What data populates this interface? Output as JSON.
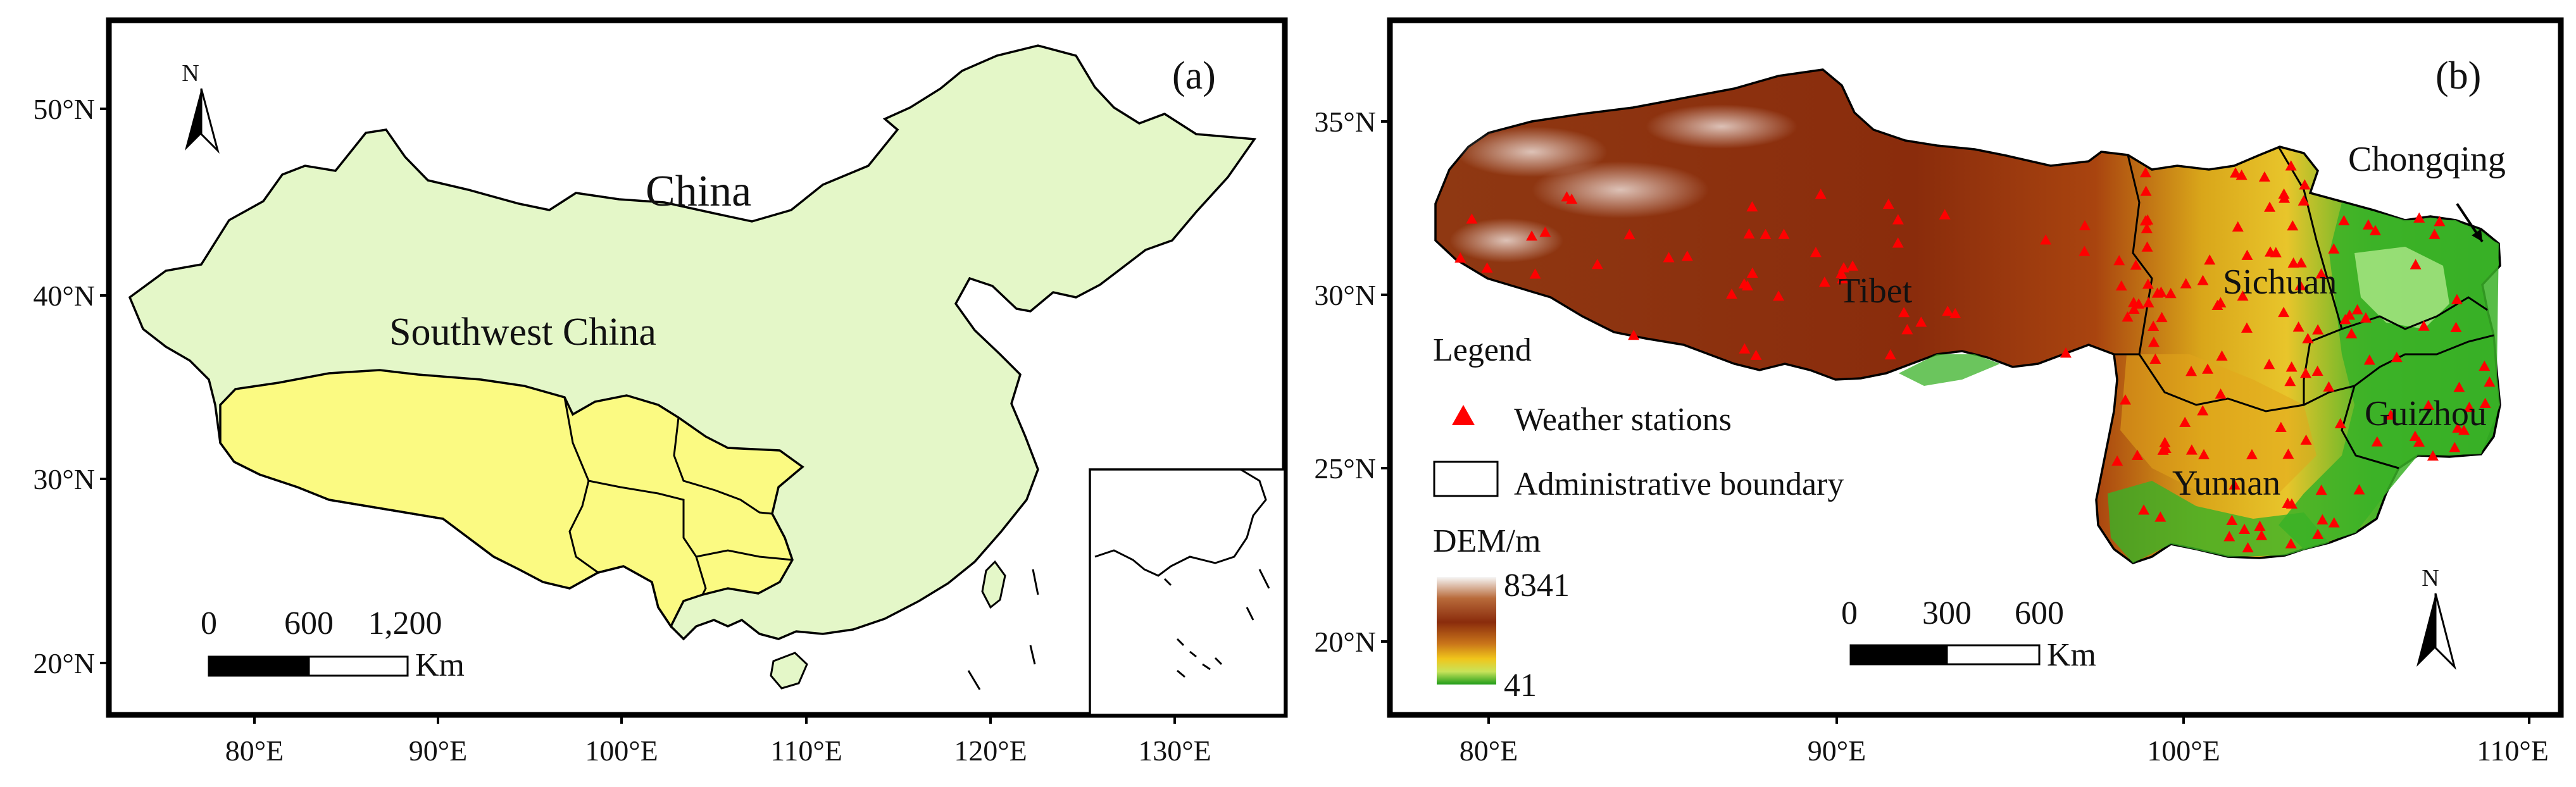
{
  "colors": {
    "china_fill": "#e4f7c8",
    "southwest_fill": "#fbfa82",
    "station": "#ff0000",
    "frame": "#000000",
    "dem_high": "#f4f4f4",
    "dem_mid_brown": "#8a2c0c",
    "dem_yellow": "#f0c51b",
    "dem_low": "#21a11a"
  },
  "panel_a": {
    "tag": "(a)",
    "north_label": "N",
    "country_label": "China",
    "region_label": "Southwest China",
    "scalebar": {
      "ticks": [
        "0",
        "600",
        "1,200"
      ],
      "unit": "Km"
    },
    "x_ticks": [
      "80°E",
      "90°E",
      "100°E",
      "110°E",
      "120°E",
      "130°E"
    ],
    "y_ticks": [
      "50°N",
      "40°N",
      "30°N",
      "20°N"
    ]
  },
  "panel_b": {
    "tag": "(b)",
    "north_label": "N",
    "provinces": [
      "Tibet",
      "Sichuan",
      "Chongqing",
      "Guizhou",
      "Yunnan"
    ],
    "legend": {
      "title": "Legend",
      "stations_label": "Weather stations",
      "boundary_label": "Administrative boundary",
      "dem_title": "DEM/m",
      "dem_max": "8341",
      "dem_min": "41"
    },
    "scalebar": {
      "ticks": [
        "0",
        "300",
        "600"
      ],
      "unit": "Km"
    },
    "x_ticks": [
      "80°E",
      "90°E",
      "100°E",
      "110°E"
    ],
    "y_ticks": [
      "35°N",
      "30°N",
      "25°N",
      "20°N"
    ]
  }
}
